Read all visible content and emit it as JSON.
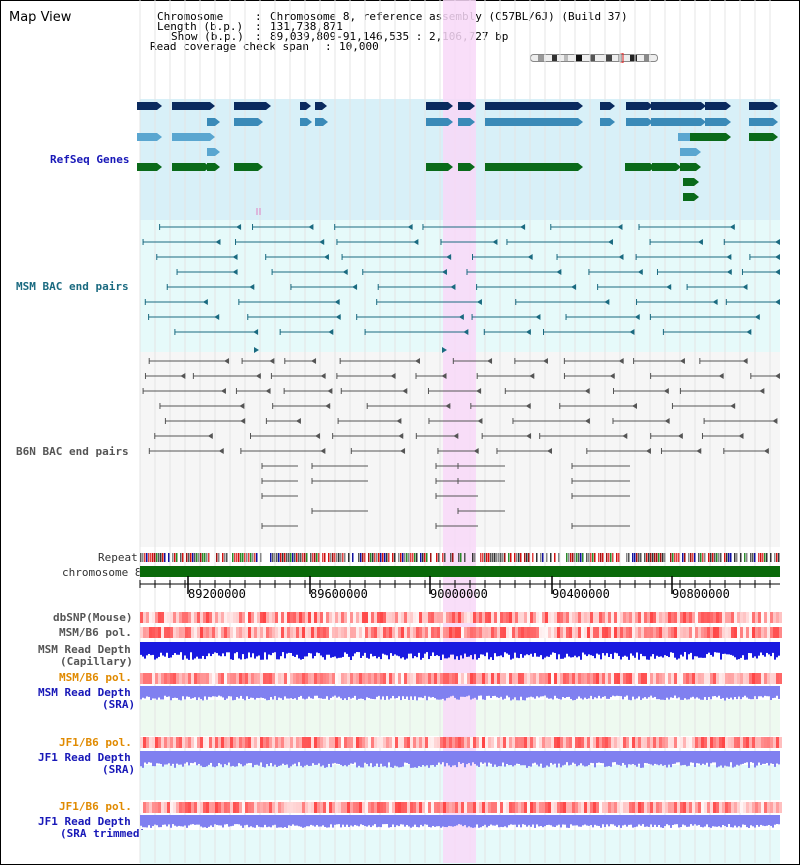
{
  "title": "Map View",
  "info": {
    "chromosome_key": "Chromosome",
    "chromosome_val": "Chromosome 8, reference assembly (C57BL/6J) (Build 37)",
    "length_key": "Length (b.p.)",
    "length_val": "131,738,871",
    "show_key": "Show (b.p.)",
    "show_val": "89,039,809-91,146,535 : 2,106,727 bp",
    "span_key": "Read coverage check span",
    "span_val": "10,000"
  },
  "tracks": {
    "refseq": "RefSeq Genes",
    "msm_bac": "MSM BAC end pairs",
    "b6n_bac": "B6N BAC end pairs",
    "repeat": "Repeat",
    "chromosome": "chromosome 8",
    "dbsnp": "dbSNP(Mouse)",
    "msm_b6_pol_1": "MSM/B6 pol.",
    "msm_depth_cap_1": "MSM Read Depth",
    "msm_depth_cap_2": "(Capillary)",
    "msm_b6_pol_2": "MSM/B6 pol.",
    "msm_depth_sra_1": "MSM Read Depth",
    "msm_depth_sra_2": "(SRA)",
    "jf1_b6_pol_1": "JF1/B6 pol.",
    "jf1_depth_sra_1": "JF1 Read Depth",
    "jf1_depth_sra_2": "(SRA)",
    "jf1_b6_pol_2": "JF1/B6 pol.",
    "jf1_depth_trim_1": "JF1 Read Depth",
    "jf1_depth_trim_2": "(SRA trimmed)"
  },
  "axis": {
    "ticks": [
      "89200000",
      "89600000",
      "90000000",
      "90400000",
      "90800000"
    ]
  },
  "colors": {
    "refseq_bg": "#d8f0f8",
    "msm_bg": "#e6fafa",
    "highlight": "#f8d8f8",
    "gene_dark": "#0a2a5e",
    "gene_mid": "#3a8ab8",
    "gene_light": "#5aa6d0",
    "gene_green": "#0a6a1a",
    "msm_line": "#1a6a80",
    "b6n_line": "#555555",
    "chromosome_bar": "#0a6a0a",
    "depth_blue": "#1a1ae0",
    "depth_violet": "#8080f0"
  }
}
